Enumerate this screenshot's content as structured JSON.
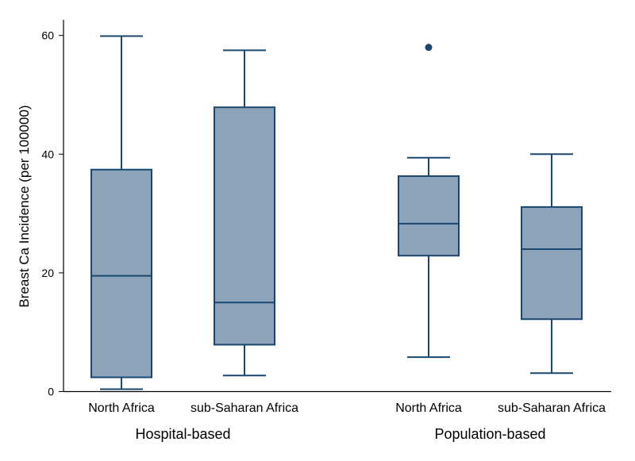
{
  "chart_data": {
    "type": "box",
    "title": "",
    "ylabel": "Breast Ca Incidence (per 100000)",
    "xlabel": "",
    "ylim": [
      0,
      60
    ],
    "yticks": [
      0,
      20,
      40,
      60
    ],
    "grid": false,
    "colors": {
      "line": "#1a476f",
      "fill": "#8ca3b9"
    },
    "groups": [
      {
        "label": "Hospital-based",
        "boxes": [
          0,
          1
        ]
      },
      {
        "label": "Population-based",
        "boxes": [
          2,
          3
        ]
      }
    ],
    "boxes": [
      {
        "label": "North Africa",
        "min": 0.4,
        "q1": 2.4,
        "median": 19.5,
        "q3": 37.4,
        "max": 59.9,
        "outliers": []
      },
      {
        "label": "sub-Saharan Africa",
        "min": 2.7,
        "q1": 7.9,
        "median": 15.0,
        "q3": 47.9,
        "max": 57.5,
        "outliers": []
      },
      {
        "label": "North Africa",
        "min": 5.8,
        "q1": 22.9,
        "median": 28.3,
        "q3": 36.3,
        "max": 39.4,
        "outliers": [
          58.0
        ]
      },
      {
        "label": "sub-Saharan Africa",
        "min": 3.1,
        "q1": 12.2,
        "median": 24.0,
        "q3": 31.1,
        "max": 40.0,
        "outliers": []
      }
    ]
  }
}
